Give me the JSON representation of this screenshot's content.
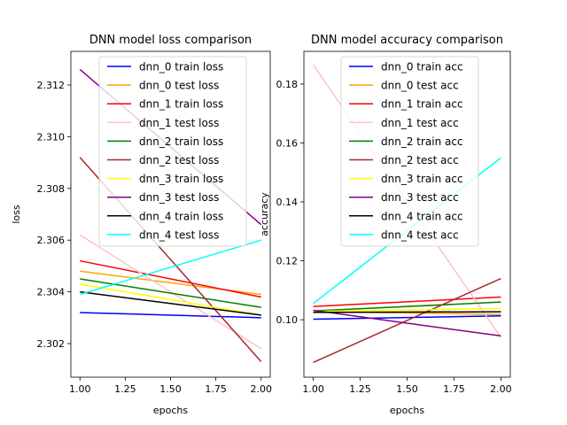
{
  "chart_data": [
    {
      "type": "line",
      "title": "DNN model loss comparison",
      "xlabel": "epochs",
      "ylabel": "loss",
      "xlim": [
        0.95,
        2.05
      ],
      "ylim": [
        2.3007,
        2.3133
      ],
      "xticks": [
        "1.00",
        "1.25",
        "1.50",
        "1.75",
        "2.00"
      ],
      "yticks": [
        "2.302",
        "2.304",
        "2.306",
        "2.308",
        "2.310",
        "2.312"
      ],
      "legend_position": "top-center",
      "grid": false,
      "x": [
        1,
        2
      ],
      "series": [
        {
          "name": "dnn_0 train loss",
          "color": "#0000ff",
          "values": [
            2.3032,
            2.303
          ]
        },
        {
          "name": "dnn_0 test loss",
          "color": "#ffa500",
          "values": [
            2.3048,
            2.3039
          ]
        },
        {
          "name": "dnn_1 train loss",
          "color": "#ff0000",
          "values": [
            2.3052,
            2.3038
          ]
        },
        {
          "name": "dnn_1 test loss",
          "color": "#ffc0cb",
          "values": [
            2.3062,
            2.3018
          ]
        },
        {
          "name": "dnn_2 train loss",
          "color": "#008000",
          "values": [
            2.3045,
            2.3034
          ]
        },
        {
          "name": "dnn_2 test loss",
          "color": "#a52a2a",
          "values": [
            2.3092,
            2.3013
          ]
        },
        {
          "name": "dnn_3 train loss",
          "color": "#ffff00",
          "values": [
            2.3043,
            2.3031
          ]
        },
        {
          "name": "dnn_3 test loss",
          "color": "#800080",
          "values": [
            2.3126,
            2.3066
          ]
        },
        {
          "name": "dnn_4 train loss",
          "color": "#000000",
          "values": [
            2.304,
            2.3031
          ]
        },
        {
          "name": "dnn_4 test loss",
          "color": "#00ffff",
          "values": [
            2.3039,
            2.306
          ]
        }
      ]
    },
    {
      "type": "line",
      "title": "DNN model accuracy comparison",
      "xlabel": "epochs",
      "ylabel": "accuracy",
      "xlim": [
        0.95,
        2.05
      ],
      "ylim": [
        0.0805,
        0.1911
      ],
      "xticks": [
        "1.00",
        "1.25",
        "1.50",
        "1.75",
        "2.00"
      ],
      "yticks": [
        "0.10",
        "0.12",
        "0.14",
        "0.16",
        "0.18"
      ],
      "legend_position": "top-center",
      "grid": false,
      "x": [
        1,
        2
      ],
      "series": [
        {
          "name": "dnn_0 train acc",
          "color": "#0000ff",
          "values": [
            0.1002,
            0.1013
          ]
        },
        {
          "name": "dnn_0 test acc",
          "color": "#ffa500",
          "values": [
            0.1028,
            0.1018
          ]
        },
        {
          "name": "dnn_1 train acc",
          "color": "#ff0000",
          "values": [
            0.1045,
            0.1077
          ]
        },
        {
          "name": "dnn_1 test acc",
          "color": "#ffc0cb",
          "values": [
            0.1865,
            0.094
          ]
        },
        {
          "name": "dnn_2 train acc",
          "color": "#008000",
          "values": [
            0.103,
            0.106
          ]
        },
        {
          "name": "dnn_2 test acc",
          "color": "#a52a2a",
          "values": [
            0.0855,
            0.114
          ]
        },
        {
          "name": "dnn_3 train acc",
          "color": "#ffff00",
          "values": [
            0.1028,
            0.1038
          ]
        },
        {
          "name": "dnn_3 test acc",
          "color": "#800080",
          "values": [
            0.1032,
            0.0945
          ]
        },
        {
          "name": "dnn_4 train acc",
          "color": "#000000",
          "values": [
            0.1025,
            0.1027
          ]
        },
        {
          "name": "dnn_4 test acc",
          "color": "#00ffff",
          "values": [
            0.1055,
            0.155
          ]
        }
      ]
    }
  ]
}
